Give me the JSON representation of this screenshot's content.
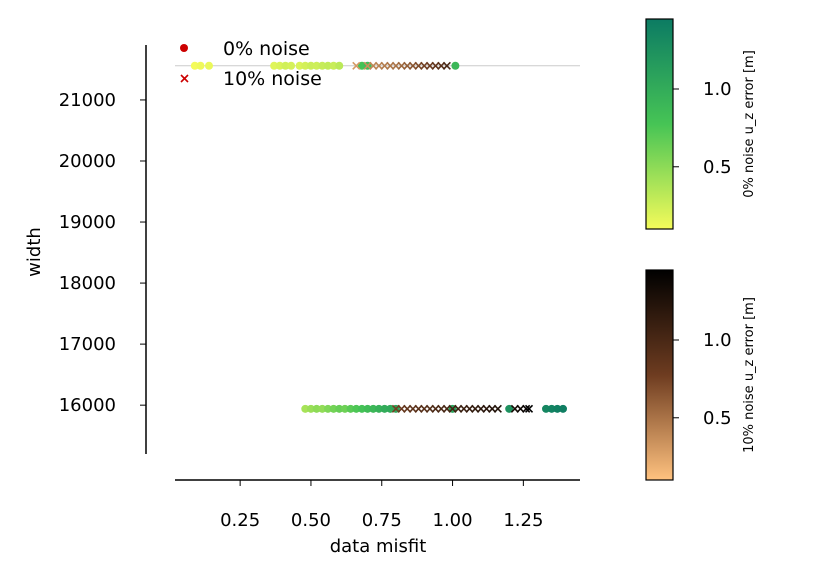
{
  "chart_data": {
    "type": "scatter",
    "xlabel": "data misfit",
    "ylabel": "width",
    "xlim": [
      0.02,
      1.45
    ],
    "ylim": [
      15200,
      21900
    ],
    "xticks": [
      0.25,
      0.5,
      0.75,
      1.0,
      1.25
    ],
    "xtick_labels": [
      "0.25",
      "0.50",
      "0.75",
      "1.00",
      "1.25"
    ],
    "yticks": [
      16000,
      17000,
      18000,
      19000,
      20000,
      21000
    ],
    "ytick_labels": [
      "16000",
      "17000",
      "18000",
      "19000",
      "20000",
      "21000"
    ],
    "reference_line_y": 21560,
    "legend": {
      "placement": "top-left",
      "entries": [
        "0% noise",
        "10% noise"
      ]
    },
    "colorbars": [
      {
        "label": "0% noise  u_z error [m]",
        "ticks": [
          0.5,
          1.0
        ],
        "tick_labels": [
          "0.5",
          "1.0"
        ],
        "range": [
          0.1,
          1.45
        ],
        "colormap": "summer_r",
        "colors": [
          "#f4fb5a",
          "#0c7b63"
        ]
      },
      {
        "label": "10% noise  u_z error [m]",
        "ticks": [
          0.5,
          1.0
        ],
        "tick_labels": [
          "0.5",
          "1.0"
        ],
        "range": [
          0.1,
          1.45
        ],
        "colormap": "copper_r",
        "colors": [
          "#ffc27f",
          "#000000"
        ]
      }
    ],
    "series": [
      {
        "name": "0% noise",
        "marker": "circle",
        "colorbar": 0,
        "points": [
          {
            "x": 0.09,
            "y": 21560,
            "c": 0.1
          },
          {
            "x": 0.11,
            "y": 21560,
            "c": 0.12
          },
          {
            "x": 0.14,
            "y": 21560,
            "c": 0.14
          },
          {
            "x": 0.37,
            "y": 21560,
            "c": 0.18
          },
          {
            "x": 0.39,
            "y": 21560,
            "c": 0.2
          },
          {
            "x": 0.41,
            "y": 21560,
            "c": 0.24
          },
          {
            "x": 0.43,
            "y": 21560,
            "c": 0.22
          },
          {
            "x": 0.46,
            "y": 21560,
            "c": 0.2
          },
          {
            "x": 0.48,
            "y": 21560,
            "c": 0.23
          },
          {
            "x": 0.5,
            "y": 21560,
            "c": 0.26
          },
          {
            "x": 0.52,
            "y": 21560,
            "c": 0.25
          },
          {
            "x": 0.54,
            "y": 21560,
            "c": 0.28
          },
          {
            "x": 0.56,
            "y": 21560,
            "c": 0.3
          },
          {
            "x": 0.58,
            "y": 21560,
            "c": 0.27
          },
          {
            "x": 0.6,
            "y": 21560,
            "c": 0.32
          },
          {
            "x": 0.68,
            "y": 21560,
            "c": 0.8
          },
          {
            "x": 0.7,
            "y": 21560,
            "c": 0.85
          },
          {
            "x": 1.01,
            "y": 21560,
            "c": 0.9
          },
          {
            "x": 0.48,
            "y": 15940,
            "c": 0.4
          },
          {
            "x": 0.5,
            "y": 15940,
            "c": 0.45
          },
          {
            "x": 0.52,
            "y": 15940,
            "c": 0.5
          },
          {
            "x": 0.54,
            "y": 15940,
            "c": 0.48
          },
          {
            "x": 0.56,
            "y": 15940,
            "c": 0.55
          },
          {
            "x": 0.58,
            "y": 15940,
            "c": 0.6
          },
          {
            "x": 0.6,
            "y": 15940,
            "c": 0.65
          },
          {
            "x": 0.62,
            "y": 15940,
            "c": 0.62
          },
          {
            "x": 0.64,
            "y": 15940,
            "c": 0.7
          },
          {
            "x": 0.66,
            "y": 15940,
            "c": 0.75
          },
          {
            "x": 0.68,
            "y": 15940,
            "c": 0.8
          },
          {
            "x": 0.7,
            "y": 15940,
            "c": 0.85
          },
          {
            "x": 0.72,
            "y": 15940,
            "c": 0.9
          },
          {
            "x": 0.74,
            "y": 15940,
            "c": 0.95
          },
          {
            "x": 0.76,
            "y": 15940,
            "c": 1.0
          },
          {
            "x": 0.78,
            "y": 15940,
            "c": 1.02
          },
          {
            "x": 0.8,
            "y": 15940,
            "c": 1.05
          },
          {
            "x": 1.0,
            "y": 15940,
            "c": 1.1
          },
          {
            "x": 1.2,
            "y": 15940,
            "c": 1.25
          },
          {
            "x": 1.33,
            "y": 15940,
            "c": 1.35
          },
          {
            "x": 1.35,
            "y": 15940,
            "c": 1.38
          },
          {
            "x": 1.37,
            "y": 15940,
            "c": 1.4
          },
          {
            "x": 1.39,
            "y": 15940,
            "c": 1.42
          }
        ]
      },
      {
        "name": "10% noise",
        "marker": "x",
        "colorbar": 1,
        "points": [
          {
            "x": 0.66,
            "y": 21560,
            "c": 0.3
          },
          {
            "x": 0.7,
            "y": 21560,
            "c": 0.35
          },
          {
            "x": 0.72,
            "y": 21560,
            "c": 0.4
          },
          {
            "x": 0.74,
            "y": 21560,
            "c": 0.42
          },
          {
            "x": 0.76,
            "y": 21560,
            "c": 0.45
          },
          {
            "x": 0.78,
            "y": 21560,
            "c": 0.48
          },
          {
            "x": 0.8,
            "y": 21560,
            "c": 0.5
          },
          {
            "x": 0.82,
            "y": 21560,
            "c": 0.55
          },
          {
            "x": 0.84,
            "y": 21560,
            "c": 0.6
          },
          {
            "x": 0.86,
            "y": 21560,
            "c": 0.65
          },
          {
            "x": 0.88,
            "y": 21560,
            "c": 0.7
          },
          {
            "x": 0.9,
            "y": 21560,
            "c": 0.75
          },
          {
            "x": 0.92,
            "y": 21560,
            "c": 0.8
          },
          {
            "x": 0.94,
            "y": 21560,
            "c": 0.85
          },
          {
            "x": 0.96,
            "y": 21560,
            "c": 0.9
          },
          {
            "x": 0.98,
            "y": 21560,
            "c": 1.0
          },
          {
            "x": 0.8,
            "y": 15940,
            "c": 0.75
          },
          {
            "x": 0.82,
            "y": 15940,
            "c": 0.8
          },
          {
            "x": 0.84,
            "y": 15940,
            "c": 0.85
          },
          {
            "x": 0.86,
            "y": 15940,
            "c": 0.88
          },
          {
            "x": 0.88,
            "y": 15940,
            "c": 0.9
          },
          {
            "x": 0.9,
            "y": 15940,
            "c": 0.92
          },
          {
            "x": 0.92,
            "y": 15940,
            "c": 0.95
          },
          {
            "x": 0.94,
            "y": 15940,
            "c": 0.98
          },
          {
            "x": 0.96,
            "y": 15940,
            "c": 1.0
          },
          {
            "x": 0.98,
            "y": 15940,
            "c": 1.02
          },
          {
            "x": 1.0,
            "y": 15940,
            "c": 1.05
          },
          {
            "x": 1.02,
            "y": 15940,
            "c": 1.08
          },
          {
            "x": 1.04,
            "y": 15940,
            "c": 1.1
          },
          {
            "x": 1.06,
            "y": 15940,
            "c": 1.12
          },
          {
            "x": 1.08,
            "y": 15940,
            "c": 1.15
          },
          {
            "x": 1.1,
            "y": 15940,
            "c": 1.18
          },
          {
            "x": 1.12,
            "y": 15940,
            "c": 1.2
          },
          {
            "x": 1.14,
            "y": 15940,
            "c": 1.22
          },
          {
            "x": 1.16,
            "y": 15940,
            "c": 1.25
          },
          {
            "x": 1.22,
            "y": 15940,
            "c": 1.3
          },
          {
            "x": 1.24,
            "y": 15940,
            "c": 1.35
          },
          {
            "x": 1.26,
            "y": 15940,
            "c": 1.4
          },
          {
            "x": 1.27,
            "y": 15940,
            "c": 1.45
          }
        ]
      }
    ]
  }
}
